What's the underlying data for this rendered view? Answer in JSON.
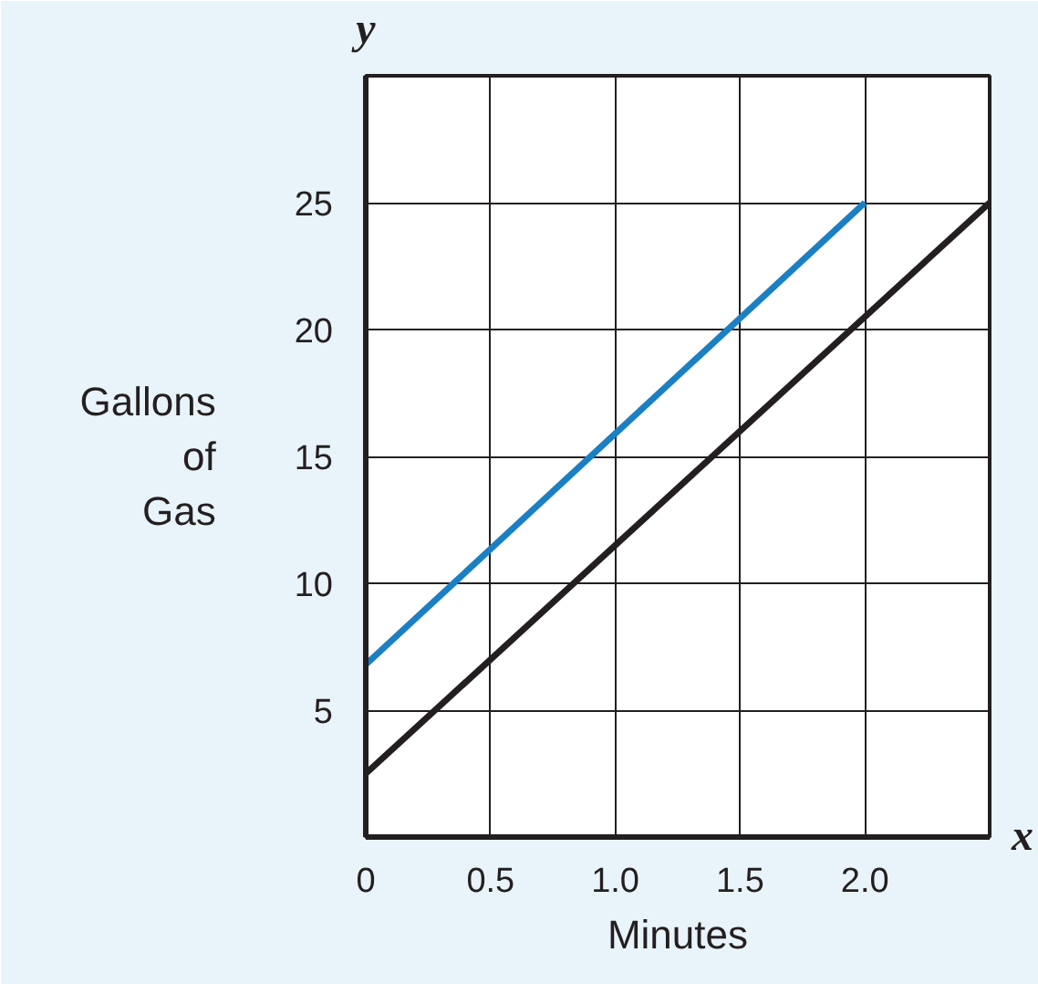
{
  "chart_data": {
    "type": "line",
    "xlabel": "Minutes",
    "ylabel": "Gallons of Gas",
    "annotations": [
      "x",
      "y"
    ],
    "series": [
      {
        "color": "#1b7fc3",
        "x": [
          0,
          2.0
        ],
        "values": [
          6.8,
          25
        ]
      },
      {
        "color": "#231f20",
        "x": [
          0,
          2.5
        ],
        "values": [
          2.5,
          25
        ]
      }
    ],
    "xlim": [
      0,
      2.5
    ],
    "ylim": [
      0,
      30
    ],
    "xticks": [
      {
        "value": 0,
        "label": "0"
      },
      0.5,
      {
        "value": 1.0,
        "label": "1.0"
      },
      1.5,
      {
        "value": 2.0,
        "label": "2.0"
      },
      {
        "value": 2.5,
        "label": null
      }
    ],
    "yticks": [
      {
        "value": 0,
        "label": null
      },
      5,
      10,
      15,
      20,
      25,
      {
        "value": 30,
        "label": null
      }
    ],
    "grid": true,
    "marker": "none",
    "line_style": "solid"
  }
}
